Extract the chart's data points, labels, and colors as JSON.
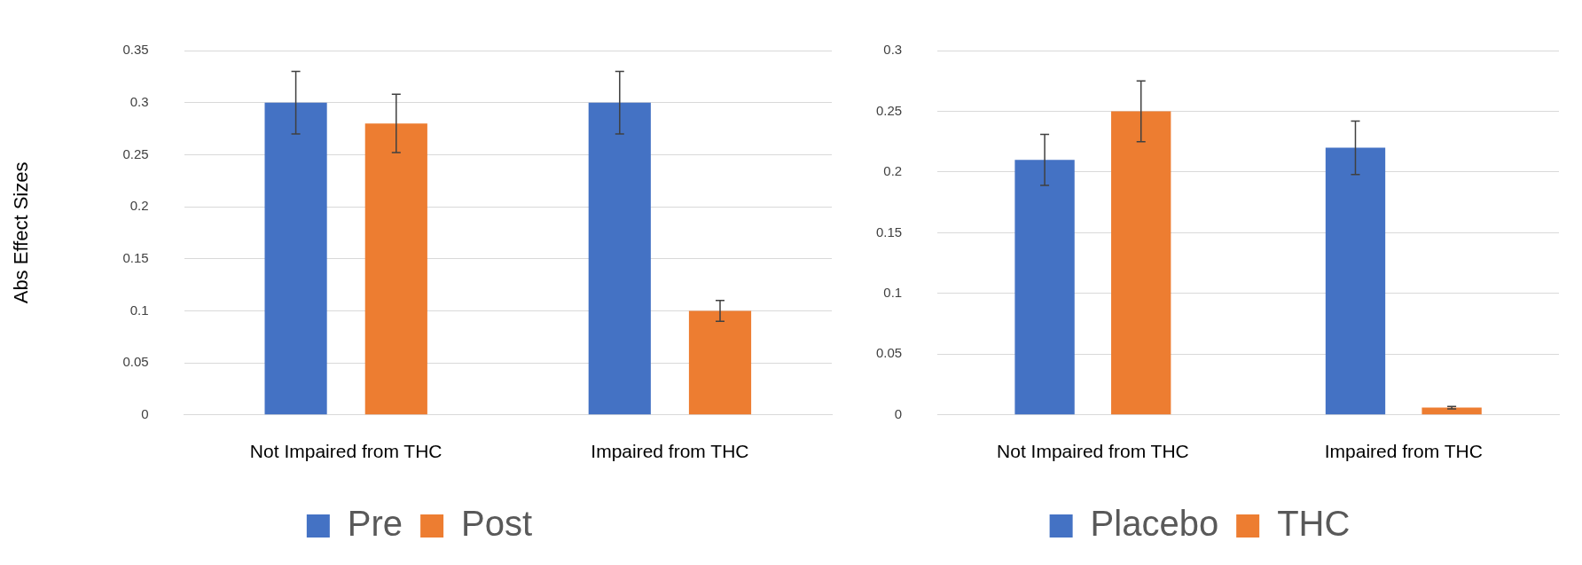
{
  "chart_data": [
    {
      "type": "bar",
      "ylabel": "Abs Effect Sizes",
      "categories": [
        "Not Impaired from THC",
        "Impaired from THC"
      ],
      "series": [
        {
          "name": "Pre",
          "color": "#4472c4",
          "values": [
            0.3,
            0.3
          ],
          "errors": [
            0.03,
            0.03
          ]
        },
        {
          "name": "Post",
          "color": "#ed7d31",
          "values": [
            0.28,
            0.1
          ],
          "errors": [
            0.028,
            0.01
          ]
        }
      ],
      "ylim": [
        0,
        0.35
      ],
      "yticks": [
        0,
        0.05,
        0.1,
        0.15,
        0.2,
        0.25,
        0.3,
        0.35
      ],
      "grid": "y",
      "legend": "bottom"
    },
    {
      "type": "bar",
      "categories": [
        "Not Impaired from THC",
        "Impaired from THC"
      ],
      "series": [
        {
          "name": "Placebo",
          "color": "#4472c4",
          "values": [
            0.21,
            0.22
          ],
          "errors": [
            0.021,
            0.022
          ]
        },
        {
          "name": "THC",
          "color": "#ed7d31",
          "values": [
            0.25,
            0.006
          ],
          "errors": [
            0.025,
            0.001
          ]
        }
      ],
      "ylim": [
        0,
        0.3
      ],
      "yticks": [
        0,
        0.05,
        0.1,
        0.15,
        0.2,
        0.25,
        0.3
      ],
      "grid": "y",
      "legend": "bottom"
    }
  ]
}
